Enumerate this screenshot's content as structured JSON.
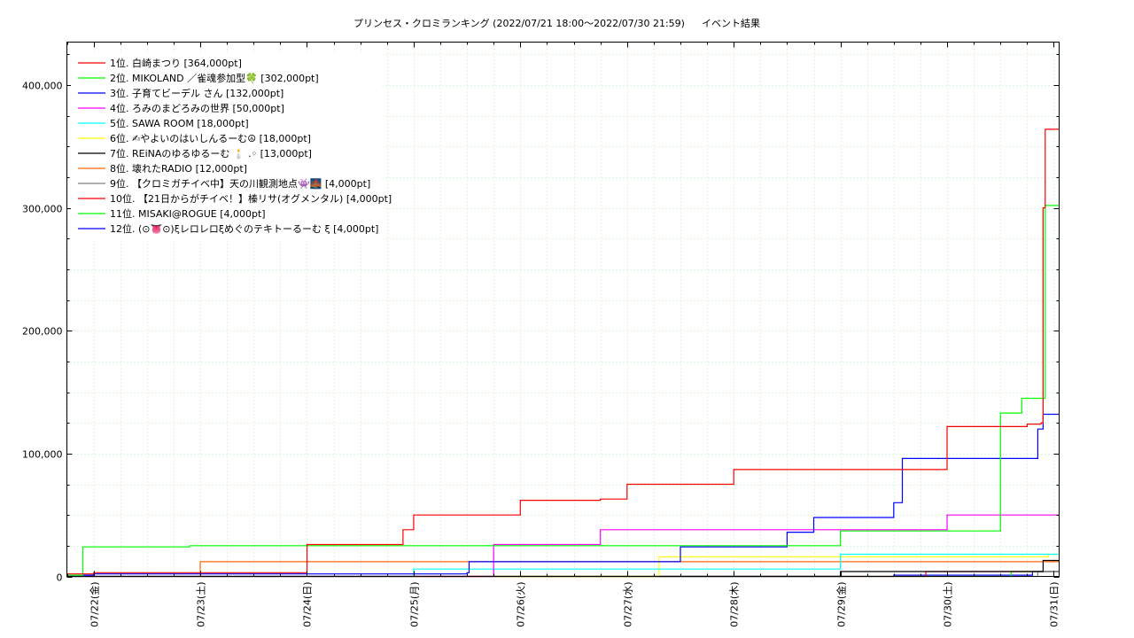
{
  "chart_data": {
    "type": "line",
    "step": true,
    "title": "プリンセス・クロミランキング (2022/07/21 18:00〜2022/07/30 21:59)",
    "subtitle": "イベント結果",
    "xlabel": "",
    "ylabel": "",
    "xlim": [
      -0.25,
      9.05
    ],
    "ylim": [
      0,
      435000
    ],
    "x_ticks": [
      {
        "pos": 0,
        "label": "07/22(金)"
      },
      {
        "pos": 1,
        "label": "07/23(土)"
      },
      {
        "pos": 2,
        "label": "07/24(日)"
      },
      {
        "pos": 3,
        "label": "07/25(月)"
      },
      {
        "pos": 4,
        "label": "07/26(火)"
      },
      {
        "pos": 5,
        "label": "07/27(水)"
      },
      {
        "pos": 6,
        "label": "07/28(木)"
      },
      {
        "pos": 7,
        "label": "07/29(金)"
      },
      {
        "pos": 8,
        "label": "07/30(土)"
      },
      {
        "pos": 9,
        "label": "07/31(日)"
      }
    ],
    "y_ticks": [
      {
        "value": 0,
        "label": "0"
      },
      {
        "value": 100000,
        "label": "100,000"
      },
      {
        "value": 200000,
        "label": "200,000"
      },
      {
        "value": 300000,
        "label": "300,000"
      },
      {
        "value": 400000,
        "label": "400,000"
      }
    ],
    "grid": true,
    "legend_position": "top-left",
    "series": [
      {
        "name": "1位. 白崎まつり [364,000pt]",
        "color": "#ff0000",
        "points": [
          [
            -0.25,
            2000
          ],
          [
            0,
            3000
          ],
          [
            2.0,
            14000
          ],
          [
            2.0,
            26000
          ],
          [
            2.9,
            38000
          ],
          [
            3.0,
            50000
          ],
          [
            4.0,
            62000
          ],
          [
            4.75,
            63000
          ],
          [
            5.0,
            75000
          ],
          [
            6.0,
            87000
          ],
          [
            8.0,
            122000
          ],
          [
            8.75,
            124000
          ],
          [
            8.88,
            125000
          ],
          [
            8.9,
            300000
          ],
          [
            8.92,
            364000
          ],
          [
            9.05,
            364000
          ]
        ]
      },
      {
        "name": "2位. MIKOLAND ／雀魂参加型🍀 [302,000pt]",
        "color": "#00ff00",
        "points": [
          [
            -0.25,
            1000
          ],
          [
            -0.1,
            24000
          ],
          [
            0.9,
            25000
          ],
          [
            2.0,
            25000
          ],
          [
            7.0,
            37000
          ],
          [
            7.95,
            37000
          ],
          [
            8.5,
            133000
          ],
          [
            8.7,
            145000
          ],
          [
            8.88,
            145000
          ],
          [
            8.92,
            302000
          ],
          [
            9.05,
            302000
          ]
        ]
      },
      {
        "name": "3位. 子育てビーデル さん [132,000pt]",
        "color": "#0000ff",
        "points": [
          [
            -0.25,
            1000
          ],
          [
            0,
            2000
          ],
          [
            3.5,
            3000
          ],
          [
            3.52,
            12000
          ],
          [
            5.5,
            24000
          ],
          [
            6.5,
            36000
          ],
          [
            6.75,
            48000
          ],
          [
            7.5,
            60000
          ],
          [
            7.58,
            96000
          ],
          [
            8.85,
            120000
          ],
          [
            8.9,
            132000
          ],
          [
            9.05,
            132000
          ]
        ]
      },
      {
        "name": "4位. ろみのまどろみの世界 [50,000pt]",
        "color": "#ff00ff",
        "points": [
          [
            -0.25,
            0
          ],
          [
            3.75,
            26000
          ],
          [
            4.75,
            38000
          ],
          [
            8.0,
            50000
          ],
          [
            9.05,
            50000
          ]
        ]
      },
      {
        "name": "5位. SAWA ROOM [18,000pt]",
        "color": "#00ffff",
        "points": [
          [
            -0.25,
            0
          ],
          [
            3.0,
            6000
          ],
          [
            7.0,
            18000
          ],
          [
            9.05,
            18000
          ]
        ]
      },
      {
        "name": "6位. ✍やよいのはいしんるーむ☮ [18,000pt]",
        "color": "#ffff00",
        "points": [
          [
            -0.25,
            0
          ],
          [
            5.3,
            16000
          ],
          [
            8.95,
            18000
          ],
          [
            9.05,
            18000
          ]
        ]
      },
      {
        "name": "7位. REiNAのゆるゆるーむ 🕯️ .◦ [13,000pt]",
        "color": "#000000",
        "points": [
          [
            -0.25,
            0
          ],
          [
            7.0,
            4000
          ],
          [
            8.9,
            13000
          ],
          [
            9.05,
            13000
          ]
        ]
      },
      {
        "name": "8位. 壊れたRADIO [12,000pt]",
        "color": "#ff6600",
        "points": [
          [
            -0.25,
            0
          ],
          [
            1.0,
            12000
          ],
          [
            9.05,
            12000
          ]
        ]
      },
      {
        "name": "9位. 【クロミガチイベ中】天の川観測地点👾🌉 [4,000pt]",
        "color": "#808080",
        "points": [
          [
            -0.25,
            0
          ],
          [
            8.85,
            4000
          ],
          [
            9.05,
            4000
          ]
        ]
      },
      {
        "name": "10位. 【21日からがチイベ！】榛リサ(オグメンタル) [4,000pt]",
        "color": "#ff0000",
        "points": [
          [
            -0.25,
            0
          ],
          [
            7.8,
            4000
          ],
          [
            9.05,
            4000
          ]
        ]
      },
      {
        "name": "11位. MISAKI@ROGUE [4,000pt]",
        "color": "#00ff00",
        "points": [
          [
            -0.25,
            0
          ],
          [
            8.6,
            4000
          ],
          [
            9.05,
            4000
          ]
        ]
      },
      {
        "name": "12位. (⊙👅⊙)ξレロレロξめぐのテキトーるーむ ξ [4,000pt]",
        "color": "#0000ff",
        "points": [
          [
            -0.25,
            0
          ],
          [
            7.5,
            1000
          ],
          [
            8.8,
            4000
          ],
          [
            9.05,
            4000
          ]
        ]
      }
    ]
  }
}
